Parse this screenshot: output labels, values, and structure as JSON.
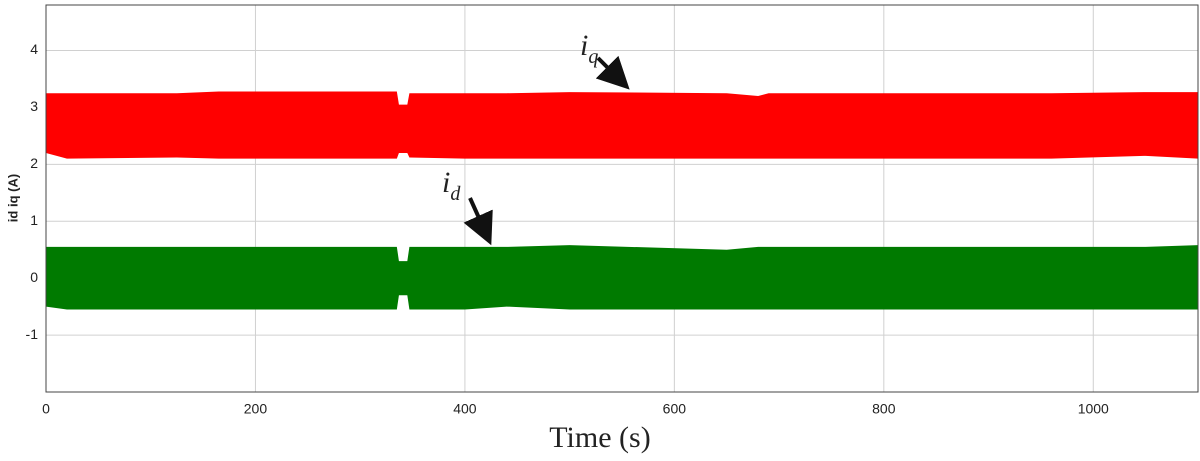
{
  "chart_data": {
    "type": "band",
    "x_label": "Time (s)",
    "y_label": "id iq (A)",
    "x": [
      0,
      20,
      125,
      165,
      335,
      337,
      345,
      347,
      400,
      440,
      500,
      650,
      680,
      690,
      960,
      1050,
      1100
    ],
    "series": [
      {
        "label": {
          "base": "i",
          "sub": "q"
        },
        "color": "#ff0000",
        "upper": [
          3.25,
          3.25,
          3.25,
          3.28,
          3.28,
          3.05,
          3.05,
          3.25,
          3.25,
          3.25,
          3.27,
          3.25,
          3.2,
          3.25,
          3.25,
          3.27,
          3.27
        ],
        "lower": [
          2.2,
          2.1,
          2.12,
          2.1,
          2.1,
          2.2,
          2.2,
          2.12,
          2.1,
          2.1,
          2.1,
          2.1,
          2.1,
          2.1,
          2.1,
          2.15,
          2.1
        ]
      },
      {
        "label": {
          "base": "i",
          "sub": "d"
        },
        "color": "#007a00",
        "upper": [
          0.55,
          0.55,
          0.55,
          0.55,
          0.55,
          0.3,
          0.3,
          0.55,
          0.55,
          0.55,
          0.58,
          0.5,
          0.55,
          0.55,
          0.55,
          0.55,
          0.58
        ],
        "lower": [
          -0.5,
          -0.55,
          -0.55,
          -0.55,
          -0.55,
          -0.3,
          -0.3,
          -0.55,
          -0.55,
          -0.5,
          -0.55,
          -0.55,
          -0.55,
          -0.55,
          -0.55,
          -0.55,
          -0.55
        ]
      }
    ],
    "xlim": [
      0,
      1100
    ],
    "xticks": [
      0,
      200,
      400,
      600,
      800,
      1000
    ],
    "ylim": [
      -2,
      4.8
    ],
    "yticks": [
      -1,
      0,
      1,
      2,
      3,
      4
    ],
    "grid": true
  }
}
